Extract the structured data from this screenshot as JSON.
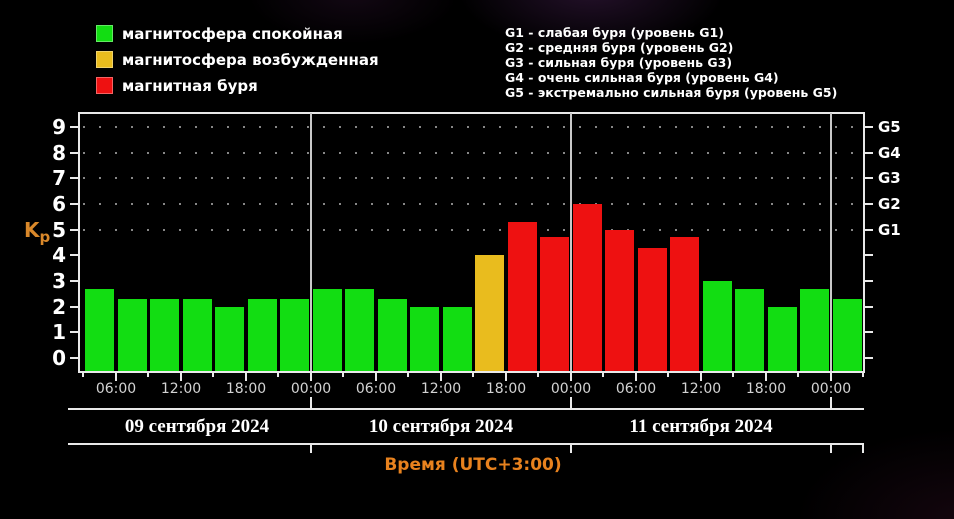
{
  "legend": {
    "items": [
      {
        "label": "магнитосфера спокойная",
        "level": "quiet"
      },
      {
        "label": "магнитосфера возбужденная",
        "level": "excited"
      },
      {
        "label": "магнитная буря",
        "level": "storm"
      }
    ]
  },
  "storm_scale": {
    "lines": [
      "G1 - слабая буря (уровень G1)",
      "G2 - средняя буря (уровень G2)",
      "G3 - сильная буря (уровень G3)",
      "G4 - очень сильная буря (уровень G4)",
      "G5 - экстремально сильная буря (уровень G5)"
    ]
  },
  "chart_data": {
    "type": "bar",
    "title": "",
    "ylabel": "Kp",
    "ylabel_display": {
      "base": "K",
      "sub": "p"
    },
    "xlabel": "Время (UTC+3:00)",
    "ylim": [
      0,
      9.5
    ],
    "interval_hours": 3,
    "grid": "dotted horizontal lines at Kp 5-9 only",
    "yticks": [
      "0",
      "1",
      "2",
      "3",
      "4",
      "5",
      "6",
      "7",
      "8",
      "9"
    ],
    "right_axis_labels": [
      {
        "kp": 5,
        "label": "G1"
      },
      {
        "kp": 6,
        "label": "G2"
      },
      {
        "kp": 7,
        "label": "G3"
      },
      {
        "kp": 8,
        "label": "G4"
      },
      {
        "kp": 9,
        "label": "G5"
      }
    ],
    "time_ticks": [
      "06:00",
      "12:00",
      "18:00",
      "00:00",
      "06:00",
      "12:00",
      "18:00",
      "00:00",
      "06:00",
      "12:00",
      "18:00",
      "00:00"
    ],
    "days": [
      {
        "date": "09 сентября 2024",
        "bars": [
          {
            "kp": 2.7,
            "level": "quiet"
          },
          {
            "kp": 2.3,
            "level": "quiet"
          },
          {
            "kp": 2.3,
            "level": "quiet"
          },
          {
            "kp": 2.3,
            "level": "quiet"
          },
          {
            "kp": 2.0,
            "level": "quiet"
          },
          {
            "kp": 2.3,
            "level": "quiet"
          },
          {
            "kp": 2.3,
            "level": "quiet"
          }
        ]
      },
      {
        "date": "10 сентября 2024",
        "bars": [
          {
            "kp": 2.7,
            "level": "quiet"
          },
          {
            "kp": 2.7,
            "level": "quiet"
          },
          {
            "kp": 2.3,
            "level": "quiet"
          },
          {
            "kp": 2.0,
            "level": "quiet"
          },
          {
            "kp": 2.0,
            "level": "quiet"
          },
          {
            "kp": 4.0,
            "level": "excited"
          },
          {
            "kp": 5.3,
            "level": "storm"
          },
          {
            "kp": 4.7,
            "level": "storm"
          }
        ]
      },
      {
        "date": "11 сентября 2024",
        "bars": [
          {
            "kp": 6.0,
            "level": "storm"
          },
          {
            "kp": 5.0,
            "level": "storm"
          },
          {
            "kp": 4.3,
            "level": "storm"
          },
          {
            "kp": 4.7,
            "level": "storm"
          },
          {
            "kp": 3.0,
            "level": "quiet"
          },
          {
            "kp": 2.7,
            "level": "quiet"
          },
          {
            "kp": 2.0,
            "level": "quiet"
          },
          {
            "kp": 2.7,
            "level": "quiet"
          }
        ]
      },
      {
        "date": "",
        "bars": [
          {
            "kp": 2.3,
            "level": "quiet"
          }
        ]
      }
    ],
    "colors": {
      "quiet": "#12dd12",
      "excited": "#e9bc1e",
      "storm": "#ee1111",
      "axis": "#e9e9e9",
      "separator": "#c9c9c9",
      "grid_dots": "#e1e1e1",
      "accent_orange": "#e8821e",
      "kp_label_orange": "#d9882a",
      "text": "#ffffff",
      "time_text": "#d3d3d3",
      "background": "#000000"
    }
  }
}
